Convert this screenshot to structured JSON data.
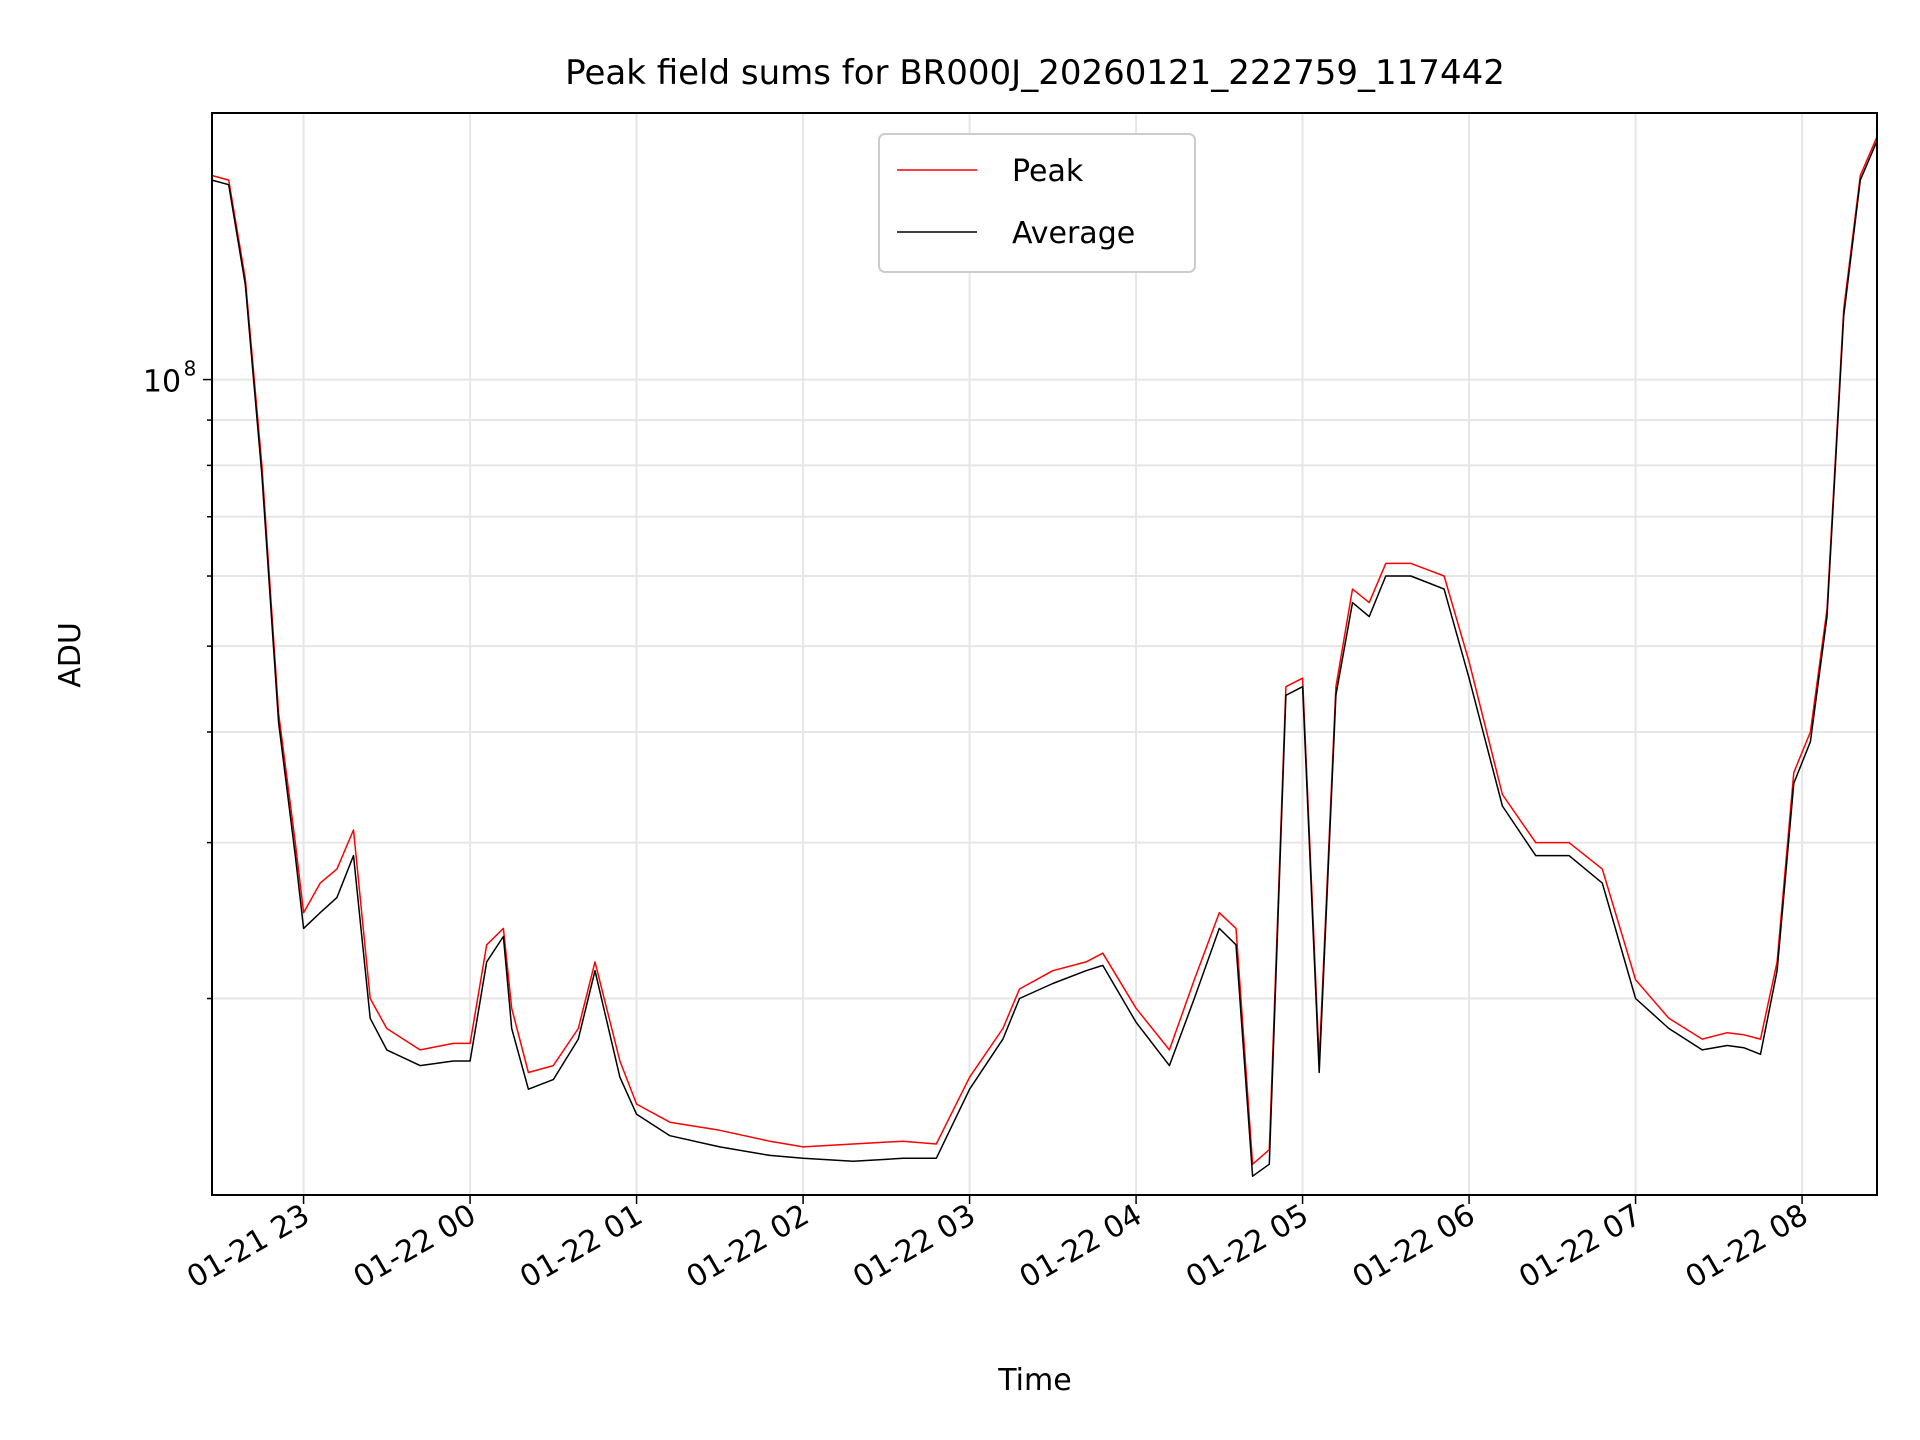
{
  "chart_data": {
    "type": "line",
    "title": "Peak field sums for BR000J_20260121_222759_117442",
    "xlabel": "Time",
    "ylabel": "ADU",
    "yscale": "log",
    "ylim": [
      12000000,
      200000000
    ],
    "xlim": [
      "2026-01-21 22:27",
      "2026-01-22 08:27"
    ],
    "x_ticks": [
      "01-21 23",
      "01-22 00",
      "01-22 01",
      "01-22 02",
      "01-22 03",
      "01-22 04",
      "01-22 05",
      "01-22 06",
      "01-22 07",
      "01-22 08"
    ],
    "x_tick_times": [
      "2026-01-21 23:00",
      "2026-01-22 00:00",
      "2026-01-22 01:00",
      "2026-01-22 02:00",
      "2026-01-22 03:00",
      "2026-01-22 04:00",
      "2026-01-22 05:00",
      "2026-01-22 06:00",
      "2026-01-22 07:00",
      "2026-01-22 08:00"
    ],
    "y_major_ticks": [
      {
        "value": 100000000,
        "label": "10",
        "exponent": "8"
      }
    ],
    "y_minor_ticks": [
      20000000,
      30000000,
      40000000,
      50000000,
      60000000,
      70000000,
      80000000,
      90000000
    ],
    "grid": true,
    "legend_position": "top-center",
    "series": [
      {
        "name": "Peak",
        "color": "#ff0000",
        "x": [
          "2026-01-21 22:27",
          "2026-01-21 22:33",
          "2026-01-21 22:39",
          "2026-01-21 22:45",
          "2026-01-21 22:51",
          "2026-01-21 22:57",
          "2026-01-21 23:00",
          "2026-01-21 23:06",
          "2026-01-21 23:12",
          "2026-01-21 23:18",
          "2026-01-21 23:24",
          "2026-01-21 23:30",
          "2026-01-21 23:42",
          "2026-01-21 23:54",
          "2026-01-22 00:00",
          "2026-01-22 00:06",
          "2026-01-22 00:12",
          "2026-01-22 00:15",
          "2026-01-22 00:21",
          "2026-01-22 00:30",
          "2026-01-22 00:39",
          "2026-01-22 00:45",
          "2026-01-22 00:54",
          "2026-01-22 01:00",
          "2026-01-22 01:12",
          "2026-01-22 01:30",
          "2026-01-22 01:48",
          "2026-01-22 02:00",
          "2026-01-22 02:18",
          "2026-01-22 02:36",
          "2026-01-22 02:48",
          "2026-01-22 03:00",
          "2026-01-22 03:12",
          "2026-01-22 03:18",
          "2026-01-22 03:30",
          "2026-01-22 03:42",
          "2026-01-22 03:48",
          "2026-01-22 04:00",
          "2026-01-22 04:12",
          "2026-01-22 04:21",
          "2026-01-22 04:30",
          "2026-01-22 04:36",
          "2026-01-22 04:42",
          "2026-01-22 04:48",
          "2026-01-22 04:54",
          "2026-01-22 05:00",
          "2026-01-22 05:06",
          "2026-01-22 05:12",
          "2026-01-22 05:18",
          "2026-01-22 05:24",
          "2026-01-22 05:30",
          "2026-01-22 05:39",
          "2026-01-22 05:45",
          "2026-01-22 05:51",
          "2026-01-22 06:00",
          "2026-01-22 06:12",
          "2026-01-22 06:24",
          "2026-01-22 06:36",
          "2026-01-22 06:48",
          "2026-01-22 07:00",
          "2026-01-22 07:12",
          "2026-01-22 07:24",
          "2026-01-22 07:33",
          "2026-01-22 07:39",
          "2026-01-22 07:45",
          "2026-01-22 07:51",
          "2026-01-22 07:57",
          "2026-01-22 08:03",
          "2026-01-22 08:09",
          "2026-01-22 08:15",
          "2026-01-22 08:21",
          "2026-01-22 08:27"
        ],
        "y": [
          170000000,
          168000000,
          130000000,
          80000000,
          42000000,
          30000000,
          25000000,
          27000000,
          28000000,
          31000000,
          20000000,
          18500000,
          17500000,
          17800000,
          17800000,
          23000000,
          24000000,
          19500000,
          16500000,
          16800000,
          18500000,
          22000000,
          17000000,
          15200000,
          14500000,
          14200000,
          13800000,
          13600000,
          13700000,
          13800000,
          13700000,
          16300000,
          18500000,
          20500000,
          21500000,
          22000000,
          22500000,
          19500000,
          17500000,
          21000000,
          25000000,
          24000000,
          13000000,
          13500000,
          45000000,
          46000000,
          17000000,
          45000000,
          58000000,
          56000000,
          62000000,
          62000000,
          61000000,
          60000000,
          48000000,
          34000000,
          30000000,
          30000000,
          28000000,
          21000000,
          19000000,
          18000000,
          18300000,
          18200000,
          18000000,
          22000000,
          36000000,
          40000000,
          55000000,
          120000000,
          170000000,
          188000000
        ]
      },
      {
        "name": "Average",
        "color": "#000000",
        "x": [
          "2026-01-21 22:27",
          "2026-01-21 22:33",
          "2026-01-21 22:39",
          "2026-01-21 22:45",
          "2026-01-21 22:51",
          "2026-01-21 22:57",
          "2026-01-21 23:00",
          "2026-01-21 23:06",
          "2026-01-21 23:12",
          "2026-01-21 23:18",
          "2026-01-21 23:24",
          "2026-01-21 23:30",
          "2026-01-21 23:42",
          "2026-01-21 23:54",
          "2026-01-22 00:00",
          "2026-01-22 00:06",
          "2026-01-22 00:12",
          "2026-01-22 00:15",
          "2026-01-22 00:21",
          "2026-01-22 00:30",
          "2026-01-22 00:39",
          "2026-01-22 00:45",
          "2026-01-22 00:54",
          "2026-01-22 01:00",
          "2026-01-22 01:12",
          "2026-01-22 01:30",
          "2026-01-22 01:48",
          "2026-01-22 02:00",
          "2026-01-22 02:18",
          "2026-01-22 02:36",
          "2026-01-22 02:48",
          "2026-01-22 03:00",
          "2026-01-22 03:12",
          "2026-01-22 03:18",
          "2026-01-22 03:30",
          "2026-01-22 03:42",
          "2026-01-22 03:48",
          "2026-01-22 04:00",
          "2026-01-22 04:12",
          "2026-01-22 04:21",
          "2026-01-22 04:30",
          "2026-01-22 04:36",
          "2026-01-22 04:42",
          "2026-01-22 04:48",
          "2026-01-22 04:54",
          "2026-01-22 05:00",
          "2026-01-22 05:06",
          "2026-01-22 05:12",
          "2026-01-22 05:18",
          "2026-01-22 05:24",
          "2026-01-22 05:30",
          "2026-01-22 05:39",
          "2026-01-22 05:45",
          "2026-01-22 05:51",
          "2026-01-22 06:00",
          "2026-01-22 06:12",
          "2026-01-22 06:24",
          "2026-01-22 06:36",
          "2026-01-22 06:48",
          "2026-01-22 07:00",
          "2026-01-22 07:12",
          "2026-01-22 07:24",
          "2026-01-22 07:33",
          "2026-01-22 07:39",
          "2026-01-22 07:45",
          "2026-01-22 07:51",
          "2026-01-22 07:57",
          "2026-01-22 08:03",
          "2026-01-22 08:09",
          "2026-01-22 08:15",
          "2026-01-22 08:21",
          "2026-01-22 08:27"
        ],
        "y": [
          168000000,
          166000000,
          128000000,
          78000000,
          41000000,
          29000000,
          24000000,
          25000000,
          26000000,
          29000000,
          19000000,
          17500000,
          16800000,
          17000000,
          17000000,
          22000000,
          23500000,
          18500000,
          15800000,
          16200000,
          18000000,
          21500000,
          16300000,
          14800000,
          14000000,
          13600000,
          13300000,
          13200000,
          13100000,
          13200000,
          13200000,
          15800000,
          18000000,
          20000000,
          20800000,
          21500000,
          21800000,
          18800000,
          16800000,
          20000000,
          24000000,
          23000000,
          12600000,
          13000000,
          44000000,
          45000000,
          16500000,
          44000000,
          56000000,
          54000000,
          60000000,
          60000000,
          59000000,
          58000000,
          46000000,
          33000000,
          29000000,
          29000000,
          27000000,
          20000000,
          18500000,
          17500000,
          17700000,
          17600000,
          17300000,
          21500000,
          35000000,
          39000000,
          54000000,
          118000000,
          168000000,
          186000000
        ]
      }
    ]
  }
}
